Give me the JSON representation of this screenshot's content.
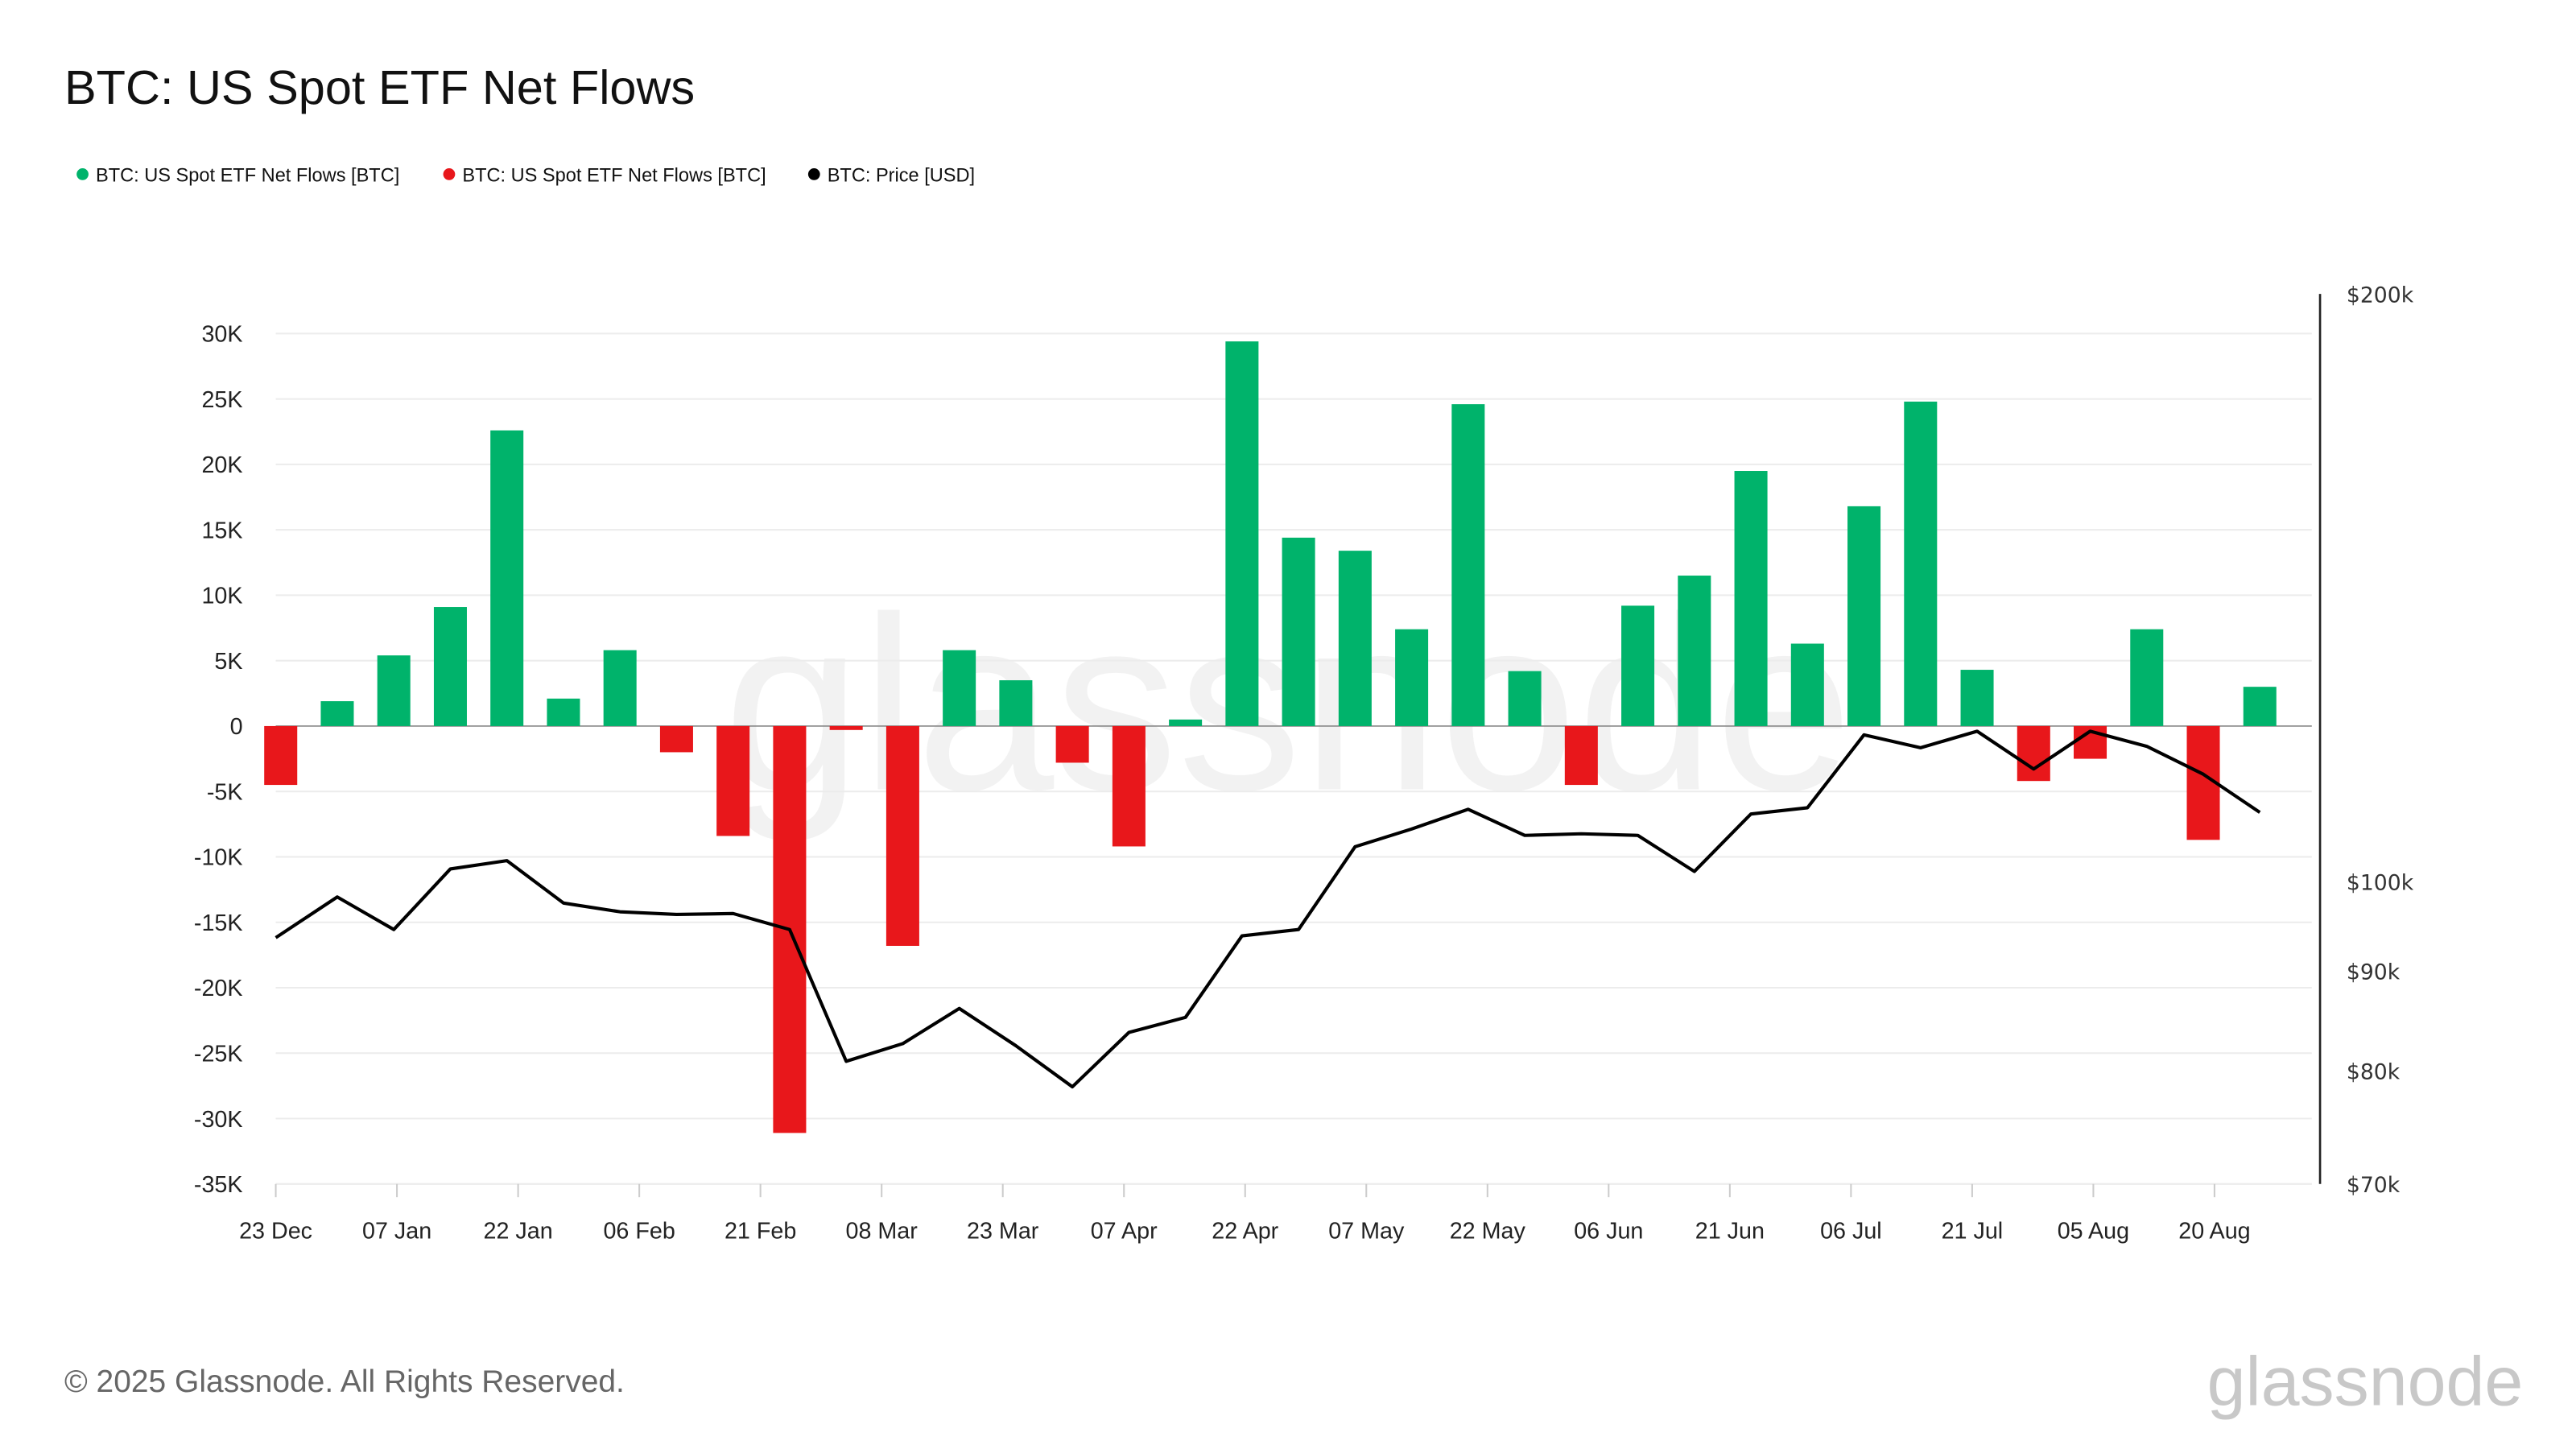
{
  "chart_data": {
    "type": "bar",
    "title": "BTC: US Spot ETF Net Flows",
    "legend": [
      {
        "label": "BTC: US Spot ETF Net Flows [BTC]",
        "color": "#00b36b"
      },
      {
        "label": "BTC: US Spot ETF Net Flows [BTC]",
        "color": "#e8171b"
      },
      {
        "label": "BTC: Price [USD]",
        "color": "#000000"
      }
    ],
    "legend_placement": "top-left",
    "grid": true,
    "x": [
      "2024-12-23",
      "2024-12-30",
      "2025-01-06",
      "2025-01-13",
      "2025-01-20",
      "2025-01-27",
      "2025-02-03",
      "2025-02-10",
      "2025-02-17",
      "2025-02-24",
      "2025-03-03",
      "2025-03-10",
      "2025-03-17",
      "2025-03-24",
      "2025-03-31",
      "2025-04-07",
      "2025-04-14",
      "2025-04-21",
      "2025-04-28",
      "2025-05-05",
      "2025-05-12",
      "2025-05-19",
      "2025-05-26",
      "2025-06-02",
      "2025-06-09",
      "2025-06-16",
      "2025-06-23",
      "2025-06-30",
      "2025-07-07",
      "2025-07-14",
      "2025-07-21",
      "2025-07-28",
      "2025-08-04",
      "2025-08-11",
      "2025-08-18",
      "2025-08-25"
    ],
    "x_ticks": [
      {
        "date": "2024-12-23",
        "label": "23 Dec"
      },
      {
        "date": "2025-01-07",
        "label": "07 Jan"
      },
      {
        "date": "2025-01-22",
        "label": "22 Jan"
      },
      {
        "date": "2025-02-06",
        "label": "06 Feb"
      },
      {
        "date": "2025-02-21",
        "label": "21 Feb"
      },
      {
        "date": "2025-03-08",
        "label": "08 Mar"
      },
      {
        "date": "2025-03-23",
        "label": "23 Mar"
      },
      {
        "date": "2025-04-07",
        "label": "07 Apr"
      },
      {
        "date": "2025-04-22",
        "label": "22 Apr"
      },
      {
        "date": "2025-05-07",
        "label": "07 May"
      },
      {
        "date": "2025-05-22",
        "label": "22 May"
      },
      {
        "date": "2025-06-06",
        "label": "06 Jun"
      },
      {
        "date": "2025-06-21",
        "label": "21 Jun"
      },
      {
        "date": "2025-07-06",
        "label": "06 Jul"
      },
      {
        "date": "2025-07-21",
        "label": "21 Jul"
      },
      {
        "date": "2025-08-05",
        "label": "05 Aug"
      },
      {
        "date": "2025-08-20",
        "label": "20 Aug"
      }
    ],
    "series": [
      {
        "name": "BTC: US Spot ETF Net Flows [BTC]",
        "axis": "left",
        "type": "bar",
        "positive_color": "#00b36b",
        "negative_color": "#e8171b",
        "values": [
          -4500,
          1900,
          5400,
          9100,
          22600,
          2100,
          5800,
          -2000,
          -8400,
          -31100,
          -300,
          -16800,
          5800,
          3500,
          -2800,
          -9200,
          500,
          29400,
          14400,
          13400,
          7400,
          24600,
          4200,
          -4500,
          9200,
          11500,
          19500,
          6300,
          16800,
          24800,
          4300,
          -4200,
          -2500,
          7400,
          -8700,
          3000
        ]
      },
      {
        "name": "BTC: Price [USD]",
        "axis": "right",
        "type": "line",
        "color": "#000000",
        "values": [
          93600,
          98200,
          94500,
          101500,
          102500,
          97500,
          96500,
          96200,
          96300,
          94500,
          80900,
          82600,
          86100,
          82400,
          78500,
          83700,
          85200,
          93800,
          94500,
          104200,
          106400,
          108900,
          105600,
          105800,
          105600,
          101200,
          108300,
          109100,
          118900,
          117100,
          119400,
          114200,
          119400,
          117300,
          113500,
          108500
        ]
      }
    ],
    "y_left": {
      "ylim": [
        -35000,
        30000
      ],
      "ticks": [
        {
          "v": 30000,
          "label": "30K"
        },
        {
          "v": 25000,
          "label": "25K"
        },
        {
          "v": 20000,
          "label": "20K"
        },
        {
          "v": 15000,
          "label": "15K"
        },
        {
          "v": 10000,
          "label": "10K"
        },
        {
          "v": 5000,
          "label": "5K"
        },
        {
          "v": 0,
          "label": "0"
        },
        {
          "v": -5000,
          "label": "-5K"
        },
        {
          "v": -10000,
          "label": "-10K"
        },
        {
          "v": -15000,
          "label": "-15K"
        },
        {
          "v": -20000,
          "label": "-20K"
        },
        {
          "v": -25000,
          "label": "-25K"
        },
        {
          "v": -30000,
          "label": "-30K"
        },
        {
          "v": -35000,
          "label": "-35K"
        }
      ]
    },
    "y_right": {
      "scale": "log",
      "ylim": [
        70000,
        200000
      ],
      "ticks": [
        {
          "v": 200000,
          "label": "$200k"
        },
        {
          "v": 100000,
          "label": "$100k"
        },
        {
          "v": 90000,
          "label": "$90k"
        },
        {
          "v": 80000,
          "label": "$80k"
        },
        {
          "v": 70000,
          "label": "$70k"
        }
      ]
    }
  },
  "footer": {
    "copyright": "© 2025 Glassnode. All Rights Reserved.",
    "logo": "glassnode"
  },
  "watermark": "glassnode"
}
